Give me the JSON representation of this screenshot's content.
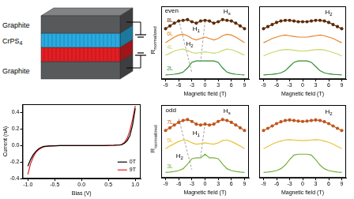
{
  "schematic": {
    "layers": [
      {
        "label": "Graphite",
        "color": "#58595b"
      },
      {
        "label": {
          "text": "CrPS",
          "sub": "4"
        },
        "color": "#29abe2"
      },
      {
        "color": "#e31e24"
      },
      {
        "label": "Graphite",
        "color": "#58595b"
      }
    ]
  },
  "chart_data": [
    {
      "type": "line",
      "x_label": "Bias (V)",
      "y_label": "Current (nA)",
      "x": [
        -1.0,
        -0.95,
        -0.9,
        -0.85,
        -0.8,
        -0.75,
        -0.7,
        -0.6,
        -0.4,
        -0.2,
        0.0,
        0.2,
        0.4,
        0.6,
        0.7,
        0.75,
        0.8,
        0.85,
        0.9,
        0.95,
        1.0
      ],
      "series": [
        {
          "name": "0T",
          "color": "#000000",
          "values": [
            -0.25,
            -0.17,
            -0.11,
            -0.07,
            -0.04,
            -0.02,
            -0.01,
            -0.005,
            0,
            0,
            0,
            0,
            0,
            0.003,
            0.006,
            0.01,
            0.03,
            0.06,
            0.12,
            0.25,
            0.45
          ]
        },
        {
          "name": "9T",
          "color": "#e31e24",
          "values": [
            -0.35,
            -0.22,
            -0.14,
            -0.08,
            -0.05,
            -0.03,
            -0.015,
            -0.006,
            0,
            0,
            0,
            0,
            0,
            0.004,
            0.008,
            0.015,
            0.04,
            0.09,
            0.18,
            0.32,
            0.48
          ]
        }
      ],
      "xlim": [
        -1.1,
        1.1
      ],
      "xticks": [
        {
          "value": -1,
          "label": "-1.0"
        },
        {
          "value": -0.5,
          "label": "-0.5"
        },
        {
          "value": 0,
          "label": "0.0"
        },
        {
          "value": 0.5,
          "label": "0.5"
        },
        {
          "value": 1,
          "label": "1.0"
        }
      ],
      "ylim": [
        -0.4,
        0.5
      ],
      "yticks": [
        -0.4,
        -0.2,
        {
          "value": 0,
          "label": "0.0"
        },
        0.2,
        0.4
      ],
      "legend": "lower right",
      "grid": false
    },
    {
      "type": "line",
      "x_label": "Magnetic field (T)",
      "y_label": {
        "text": "R",
        "sub": "normalized"
      },
      "x": [
        -9,
        -8,
        -7,
        -6,
        -5,
        -4,
        -3,
        -2,
        -1,
        0,
        1,
        2,
        3,
        4,
        5,
        6,
        7,
        8,
        9
      ],
      "series": [
        {
          "name": "8L",
          "color": "#5c2a06",
          "marker": "circle",
          "line_style": "solid",
          "values": [
            3.3,
            3.5,
            3.7,
            3.85,
            3.9,
            3.95,
            3.8,
            3.7,
            3.85,
            3.9,
            3.85,
            3.7,
            3.8,
            3.95,
            3.9,
            3.85,
            3.7,
            3.5,
            3.3
          ]
        },
        {
          "name": "6L",
          "color": "#e8822a",
          "marker": "none",
          "line_style": "solid",
          "values": [
            2.3,
            2.5,
            2.7,
            2.85,
            2.9,
            2.8,
            2.6,
            2.5,
            2.6,
            2.7,
            2.6,
            2.5,
            2.6,
            2.8,
            2.9,
            2.85,
            2.7,
            2.5,
            2.3
          ]
        },
        {
          "name": "4L",
          "color": "#c9d86a",
          "marker": "none",
          "line_style": "solid",
          "values": [
            1.4,
            1.55,
            1.7,
            1.8,
            1.85,
            1.75,
            1.6,
            1.55,
            1.6,
            1.65,
            1.6,
            1.55,
            1.6,
            1.75,
            1.85,
            1.8,
            1.7,
            1.55,
            1.4
          ]
        },
        {
          "name": "2L",
          "color": "#2e8b2e",
          "marker": "none",
          "line_style": "solid",
          "values": [
            0,
            0.02,
            0.05,
            0.1,
            0.2,
            0.5,
            0.9,
            1.0,
            1.0,
            1.0,
            1.0,
            1.0,
            0.9,
            0.5,
            0.2,
            0.1,
            0.05,
            0.02,
            0
          ]
        },
        {
          "color": "#999999",
          "marker": "none",
          "line_style": "dashed",
          "x": [
            -6,
            -3
          ],
          "values": [
            3.95,
            0.15
          ]
        },
        {
          "color": "#999999",
          "marker": "none",
          "line_style": "dashed",
          "x": [
            0,
            -1
          ],
          "values": [
            3.85,
            1.0
          ]
        }
      ],
      "annotations": [
        {
          "text": "even",
          "x": -7.6,
          "y": 4.55
        },
        {
          "text": "H",
          "sub": "s",
          "x": 5,
          "y": 4.5
        },
        {
          "text": "H",
          "sub": "1",
          "x": -2,
          "y": 3.25
        },
        {
          "text": "H",
          "sub": "2",
          "x": -3.5,
          "y": 2.2
        }
      ],
      "xlim": [
        -10,
        10
      ],
      "xticks": [
        -9,
        -6,
        -3,
        0,
        3,
        6,
        9
      ],
      "ylim": [
        -0.3,
        4.9
      ],
      "yticks": [],
      "tick_labels": "x",
      "grid": false
    },
    {
      "type": "line",
      "x_label": "Magnetic field (T)",
      "x": [
        -9,
        -8,
        -7,
        -6,
        -5,
        -4,
        -3,
        -2,
        -1,
        0,
        1,
        2,
        3,
        4,
        5,
        6,
        7,
        8,
        9
      ],
      "series": [
        {
          "color": "#5c2a06",
          "marker": "circle",
          "line_style": "solid",
          "values": [
            3.3,
            3.45,
            3.6,
            3.75,
            3.85,
            3.9,
            3.9,
            3.85,
            3.8,
            3.8,
            3.8,
            3.85,
            3.9,
            3.9,
            3.85,
            3.75,
            3.6,
            3.45,
            3.3
          ]
        },
        {
          "color": "#e8822a",
          "marker": "none",
          "line_style": "solid",
          "values": [
            2.3,
            2.45,
            2.6,
            2.7,
            2.8,
            2.85,
            2.8,
            2.75,
            2.7,
            2.7,
            2.7,
            2.75,
            2.8,
            2.85,
            2.8,
            2.7,
            2.6,
            2.45,
            2.3
          ]
        },
        {
          "color": "#c9d86a",
          "marker": "none",
          "line_style": "solid",
          "values": [
            1.35,
            1.5,
            1.6,
            1.7,
            1.78,
            1.82,
            1.8,
            1.76,
            1.72,
            1.7,
            1.72,
            1.76,
            1.8,
            1.82,
            1.78,
            1.7,
            1.6,
            1.5,
            1.35
          ]
        },
        {
          "color": "#2e8b2e",
          "marker": "none",
          "line_style": "solid",
          "values": [
            0,
            0.02,
            0.04,
            0.08,
            0.15,
            0.3,
            0.6,
            0.9,
            1.0,
            1.0,
            1.0,
            0.9,
            0.6,
            0.3,
            0.15,
            0.08,
            0.04,
            0.02,
            0
          ]
        }
      ],
      "annotations": [
        {
          "text": "H",
          "sub": "2",
          "x": 6,
          "y": 4.45
        }
      ],
      "xlim": [
        -10,
        10
      ],
      "xticks": [
        -9,
        -6,
        -3,
        0,
        3,
        6,
        9
      ],
      "ylim": [
        -0.3,
        4.9
      ],
      "yticks": [],
      "tick_labels": "x",
      "grid": false
    },
    {
      "type": "line",
      "x_label": "Magnetic field (T)",
      "y_label": {
        "text": "R",
        "sub": "normalized"
      },
      "x": [
        -9,
        -8,
        -7,
        -6,
        -5,
        -4,
        -3,
        -2,
        -1,
        0,
        1,
        2,
        3,
        4,
        5,
        6,
        7,
        8,
        9
      ],
      "series": [
        {
          "name": "7L",
          "color": "#c0561c",
          "marker": "circle",
          "line_style": "solid",
          "values": [
            2.3,
            2.45,
            2.6,
            2.75,
            2.85,
            2.9,
            2.8,
            2.65,
            2.6,
            2.65,
            2.6,
            2.65,
            2.8,
            2.9,
            2.85,
            2.75,
            2.6,
            2.45,
            2.3
          ]
        },
        {
          "name": "5L",
          "color": "#e8c23a",
          "marker": "none",
          "line_style": "solid",
          "values": [
            1.3,
            1.45,
            1.58,
            1.7,
            1.78,
            1.75,
            1.62,
            1.55,
            1.58,
            1.62,
            1.58,
            1.55,
            1.62,
            1.75,
            1.78,
            1.7,
            1.58,
            1.45,
            1.3
          ]
        },
        {
          "name": "3L",
          "color": "#74b03a",
          "marker": "none",
          "line_style": "solid",
          "values": [
            0,
            0.02,
            0.05,
            0.1,
            0.2,
            0.45,
            0.75,
            0.8,
            0.8,
            1.0,
            0.8,
            0.8,
            0.75,
            0.45,
            0.2,
            0.1,
            0.05,
            0.02,
            0
          ]
        },
        {
          "color": "#999999",
          "marker": "none",
          "line_style": "dashed",
          "x": [
            -6,
            -3
          ],
          "values": [
            2.95,
            0.15
          ]
        },
        {
          "color": "#999999",
          "marker": "none",
          "line_style": "dashed",
          "x": [
            0,
            -1
          ],
          "values": [
            2.7,
            0.85
          ]
        }
      ],
      "annotations": [
        {
          "text": "odd",
          "x": -7.8,
          "y": 3.4
        },
        {
          "text": "H",
          "sub": "s",
          "x": 5,
          "y": 3.35
        },
        {
          "text": "H",
          "sub": "1",
          "x": -2,
          "y": 2.15
        },
        {
          "text": "H",
          "sub": "2",
          "x": -5.8,
          "y": 0.9
        }
      ],
      "xlim": [
        -10,
        10
      ],
      "xticks": [
        -9,
        -6,
        -3,
        0,
        3,
        6,
        9
      ],
      "ylim": [
        -0.3,
        3.7
      ],
      "yticks": [],
      "tick_labels": "x",
      "grid": false
    },
    {
      "type": "line",
      "x_label": "Magnetic field (T)",
      "x": [
        -9,
        -8,
        -7,
        -6,
        -5,
        -4,
        -3,
        -2,
        -1,
        0,
        1,
        2,
        3,
        4,
        5,
        6,
        7,
        8,
        9
      ],
      "series": [
        {
          "color": "#c0561c",
          "marker": "circle",
          "line_style": "solid",
          "values": [
            2.3,
            2.42,
            2.55,
            2.68,
            2.78,
            2.85,
            2.88,
            2.85,
            2.82,
            2.8,
            2.82,
            2.85,
            2.88,
            2.85,
            2.78,
            2.68,
            2.55,
            2.42,
            2.3
          ]
        },
        {
          "color": "#e8c23a",
          "marker": "none",
          "line_style": "solid",
          "values": [
            1.3,
            1.42,
            1.55,
            1.65,
            1.72,
            1.78,
            1.8,
            1.78,
            1.75,
            1.75,
            1.75,
            1.78,
            1.8,
            1.78,
            1.72,
            1.65,
            1.55,
            1.42,
            1.3
          ]
        },
        {
          "color": "#74b03a",
          "marker": "none",
          "line_style": "solid",
          "values": [
            0,
            0.02,
            0.05,
            0.1,
            0.2,
            0.4,
            0.7,
            0.95,
            1.0,
            1.0,
            1.0,
            0.95,
            0.7,
            0.4,
            0.2,
            0.1,
            0.05,
            0.02,
            0
          ]
        }
      ],
      "annotations": [
        {
          "text": "H",
          "sub": "2",
          "x": 6,
          "y": 3.3
        }
      ],
      "xlim": [
        -10,
        10
      ],
      "xticks": [
        -9,
        -6,
        -3,
        0,
        3,
        6,
        9
      ],
      "ylim": [
        -0.3,
        3.7
      ],
      "yticks": [],
      "tick_labels": "x",
      "grid": false
    }
  ]
}
